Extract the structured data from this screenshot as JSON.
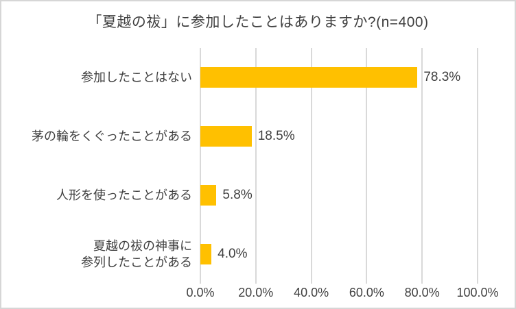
{
  "chart_data": {
    "type": "bar",
    "orientation": "horizontal",
    "title": "「夏越の祓」に参加したことはありますか?(n=400)",
    "categories": [
      "参加したことはない",
      "茅の輪をくぐったことがある",
      "人形を使ったことがある",
      "夏越の祓の神事に\n参列したことがある"
    ],
    "values": [
      78.3,
      18.5,
      5.8,
      4.0
    ],
    "value_labels": [
      "78.3%",
      "18.5%",
      "5.8%",
      "4.0%"
    ],
    "x_ticks": [
      0,
      20,
      40,
      60,
      80,
      100
    ],
    "x_tick_labels": [
      "0.0%",
      "20.0%",
      "40.0%",
      "60.0%",
      "80.0%",
      "100.0%"
    ],
    "xlim": [
      0,
      100
    ],
    "grid": true,
    "legend": false,
    "bar_color": "#FFC000",
    "gridline_color": "#D9D9D9",
    "text_color": "#404040"
  }
}
